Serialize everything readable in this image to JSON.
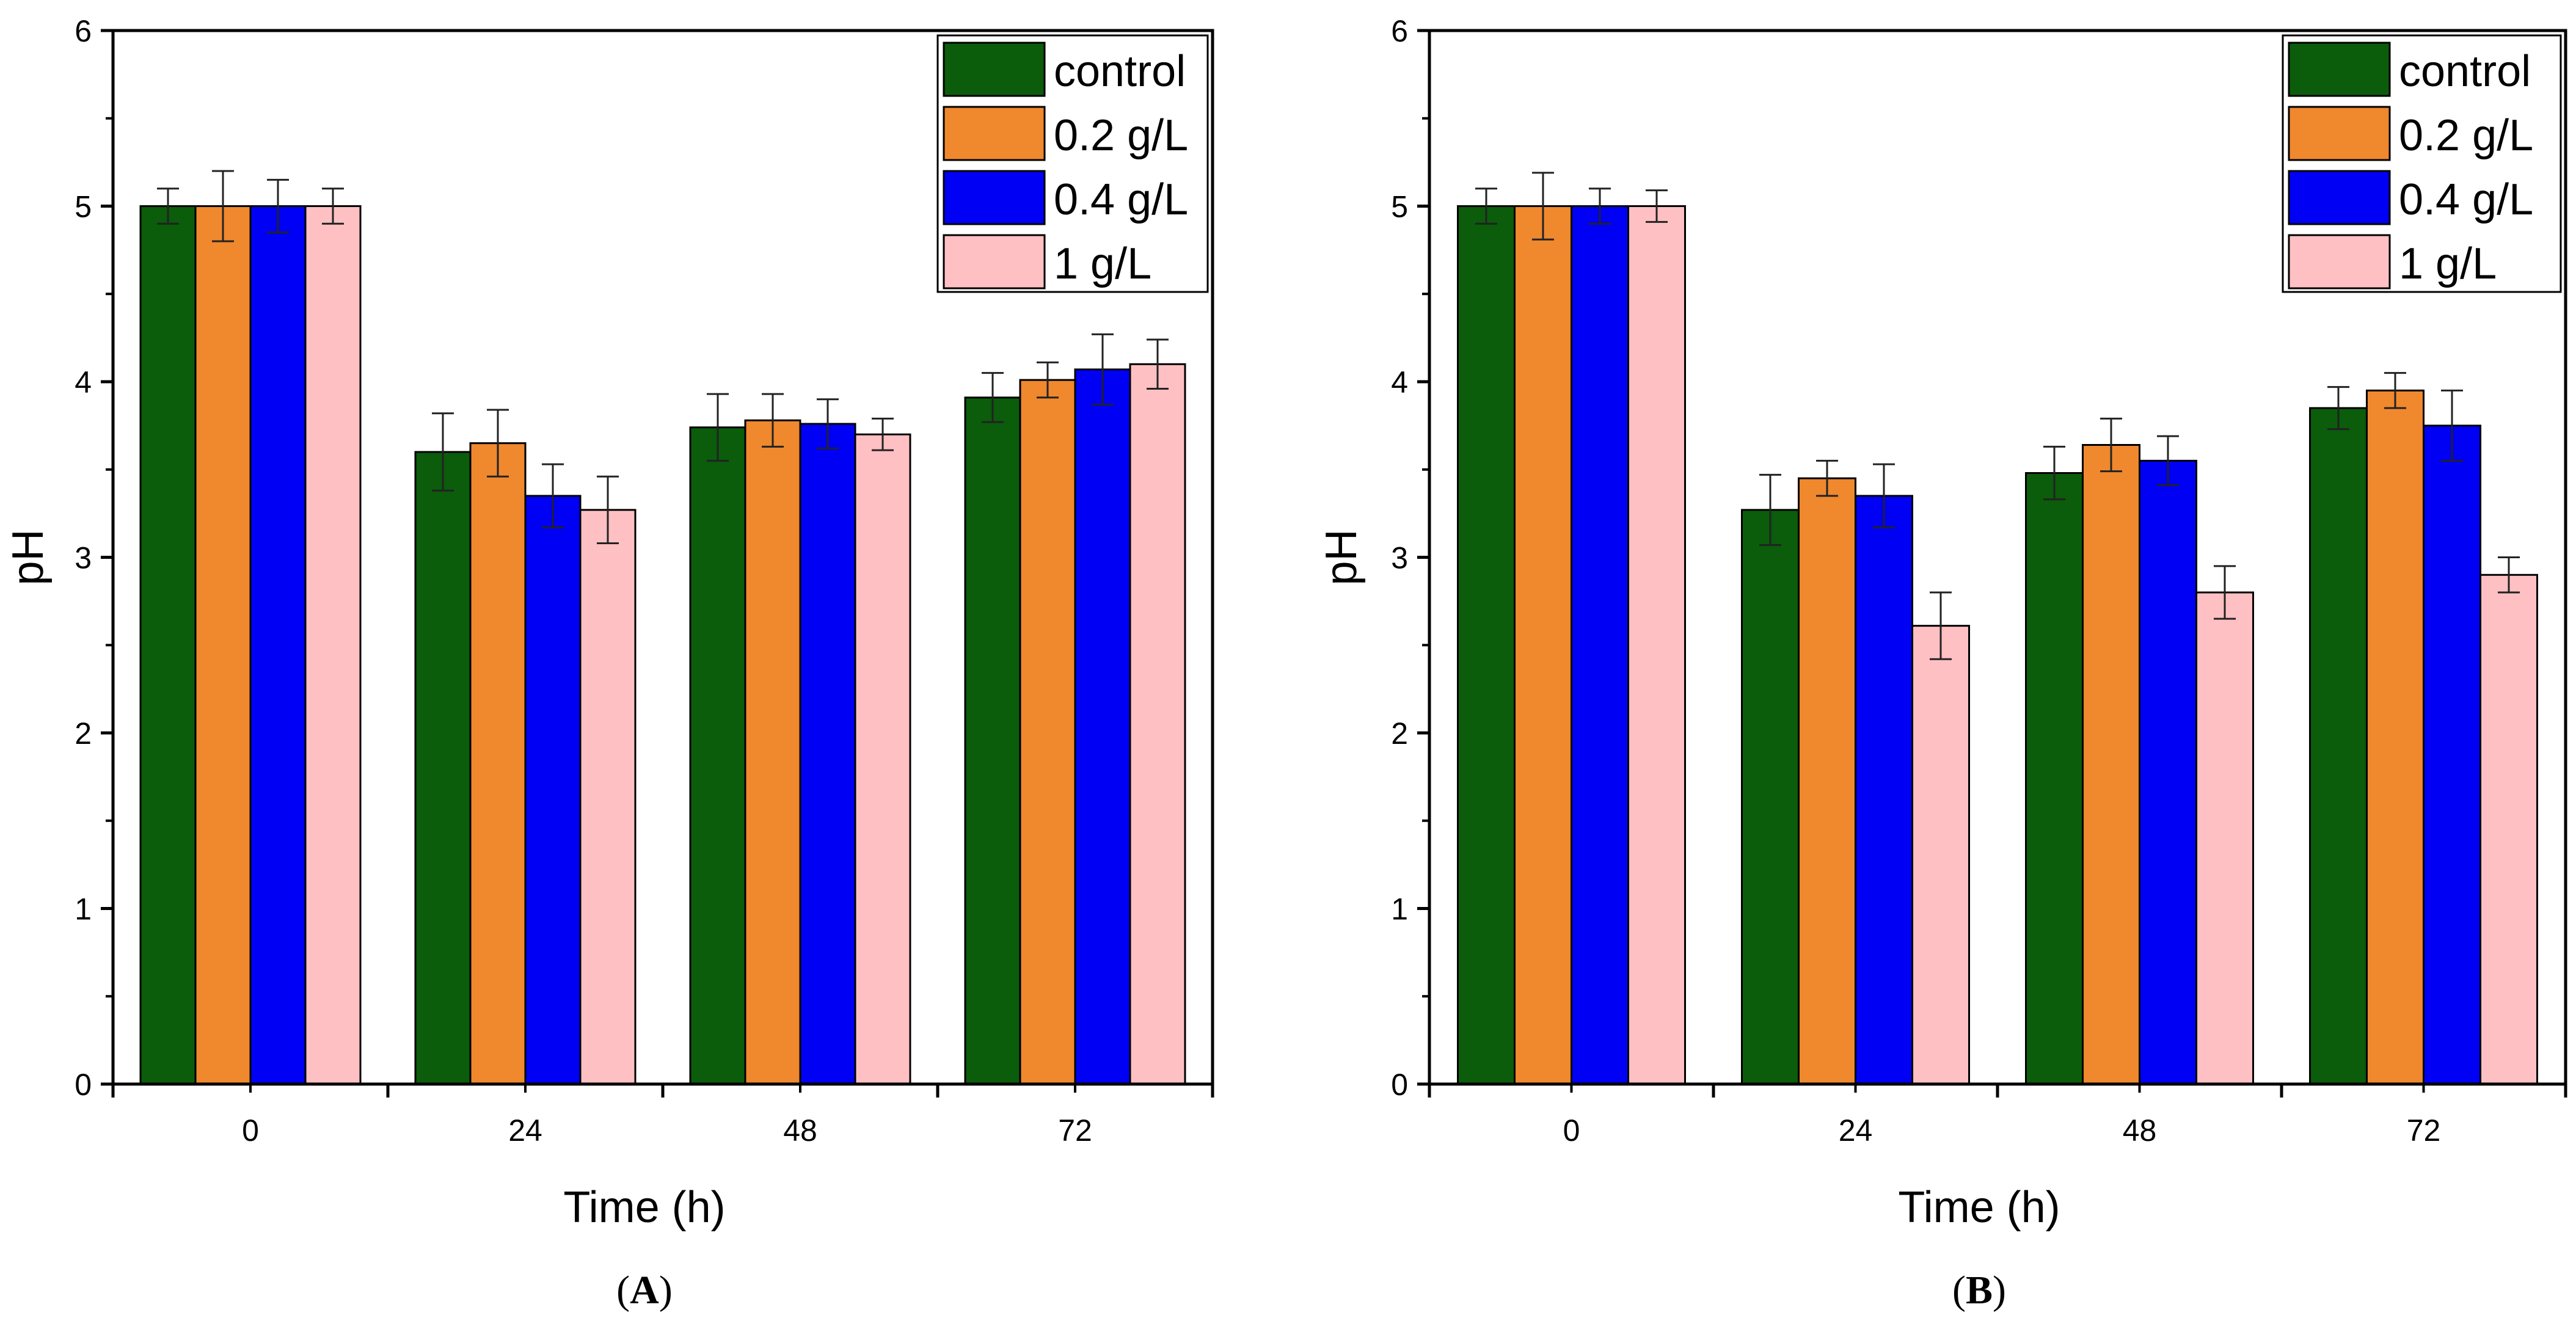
{
  "colors": {
    "control": "#0b5c0b",
    "g02": "#f0882e",
    "g04": "#0000f5",
    "g1": "#ffc0c3",
    "axis": "#000000"
  },
  "chart_data": [
    {
      "type": "bar",
      "panel": "A",
      "panel_label_open": "(",
      "panel_label_letter": "A",
      "panel_label_close": ")",
      "xlabel": "Time (h)",
      "ylabel": "pH",
      "ylim": [
        0,
        6
      ],
      "yticks": [
        "0",
        "1",
        "2",
        "3",
        "4",
        "5",
        "6"
      ],
      "categories": [
        "0",
        "24",
        "48",
        "72"
      ],
      "legend_position": "top-right",
      "series": [
        {
          "name": "control",
          "color_key": "control",
          "values": [
            5.0,
            3.6,
            3.74,
            3.91
          ],
          "errors": [
            0.1,
            0.22,
            0.19,
            0.14
          ]
        },
        {
          "name": "0.2 g/L",
          "color_key": "g02",
          "values": [
            5.0,
            3.65,
            3.78,
            4.01
          ],
          "errors": [
            0.2,
            0.19,
            0.15,
            0.1
          ]
        },
        {
          "name": "0.4 g/L",
          "color_key": "g04",
          "values": [
            5.0,
            3.35,
            3.76,
            4.07
          ],
          "errors": [
            0.15,
            0.18,
            0.14,
            0.2
          ]
        },
        {
          "name": "1 g/L",
          "color_key": "g1",
          "values": [
            5.0,
            3.27,
            3.7,
            4.1
          ],
          "errors": [
            0.1,
            0.19,
            0.09,
            0.14
          ]
        }
      ]
    },
    {
      "type": "bar",
      "panel": "B",
      "panel_label_open": "(",
      "panel_label_letter": "B",
      "panel_label_close": ")",
      "xlabel": "Time (h)",
      "ylabel": "pH",
      "ylim": [
        0,
        6
      ],
      "yticks": [
        "0",
        "1",
        "2",
        "3",
        "4",
        "5",
        "6"
      ],
      "categories": [
        "0",
        "24",
        "48",
        "72"
      ],
      "legend_position": "top-right",
      "series": [
        {
          "name": "control",
          "color_key": "control",
          "values": [
            5.0,
            3.27,
            3.48,
            3.85
          ],
          "errors": [
            0.1,
            0.2,
            0.15,
            0.12
          ]
        },
        {
          "name": "0.2 g/L",
          "color_key": "g02",
          "values": [
            5.0,
            3.45,
            3.64,
            3.95
          ],
          "errors": [
            0.19,
            0.1,
            0.15,
            0.1
          ]
        },
        {
          "name": "0.4 g/L",
          "color_key": "g04",
          "values": [
            5.0,
            3.35,
            3.55,
            3.75
          ],
          "errors": [
            0.1,
            0.18,
            0.14,
            0.2
          ]
        },
        {
          "name": "1 g/L",
          "color_key": "g1",
          "values": [
            5.0,
            2.61,
            2.8,
            2.9
          ],
          "errors": [
            0.09,
            0.19,
            0.15,
            0.1
          ]
        }
      ]
    }
  ]
}
